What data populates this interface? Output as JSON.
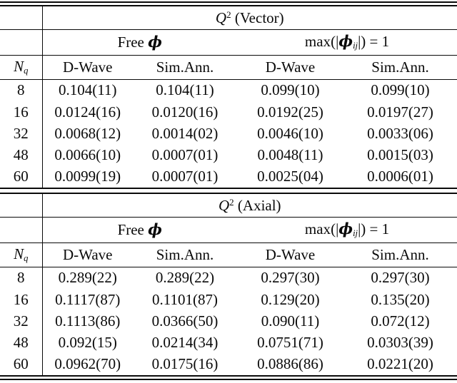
{
  "page": {
    "background": "#ffffff",
    "text_color": "#0a0a0a",
    "rule_color": "#0a0a0a"
  },
  "tables": [
    {
      "title": {
        "var": "Q",
        "sup": "2",
        "label": " (Vector)"
      },
      "groups": [
        {
          "pre": "Free ",
          "phi": "ϕ"
        },
        {
          "pre": "max(|",
          "phi": "ϕ",
          "sub": "ij",
          "post": "|) = 1"
        }
      ],
      "row_header": {
        "var": "N",
        "sub": "q"
      },
      "col_headers": [
        "D-Wave",
        "Sim.Ann.",
        "D-Wave",
        "Sim.Ann."
      ],
      "rows": [
        {
          "nq": "8",
          "values": [
            "0.104(11)",
            "0.104(11)",
            "0.099(10)",
            "0.099(10)"
          ]
        },
        {
          "nq": "16",
          "values": [
            "0.0124(16)",
            "0.0120(16)",
            "0.0192(25)",
            "0.0197(27)"
          ]
        },
        {
          "nq": "32",
          "values": [
            "0.0068(12)",
            "0.0014(02)",
            "0.0046(10)",
            "0.0033(06)"
          ]
        },
        {
          "nq": "48",
          "values": [
            "0.0066(10)",
            "0.0007(01)",
            "0.0048(11)",
            "0.0015(03)"
          ]
        },
        {
          "nq": "60",
          "values": [
            "0.0099(19)",
            "0.0007(01)",
            "0.0025(04)",
            "0.0006(01)"
          ]
        }
      ]
    },
    {
      "title": {
        "var": "Q",
        "sup": "2",
        "label": " (Axial)"
      },
      "groups": [
        {
          "pre": "Free ",
          "phi": "ϕ"
        },
        {
          "pre": "max(|",
          "phi": "ϕ",
          "sub": "ij",
          "post": "|) = 1"
        }
      ],
      "row_header": {
        "var": "N",
        "sub": "q"
      },
      "col_headers": [
        "D-Wave",
        "Sim.Ann.",
        "D-Wave",
        "Sim.Ann."
      ],
      "rows": [
        {
          "nq": "8",
          "values": [
            "0.289(22)",
            "0.289(22)",
            "0.297(30)",
            "0.297(30)"
          ]
        },
        {
          "nq": "16",
          "values": [
            "0.1117(87)",
            "0.1101(87)",
            "0.129(20)",
            "0.135(20)"
          ]
        },
        {
          "nq": "32",
          "values": [
            "0.1113(86)",
            "0.0366(50)",
            "0.090(11)",
            "0.072(12)"
          ]
        },
        {
          "nq": "48",
          "values": [
            "0.092(15)",
            "0.0214(34)",
            "0.0751(71)",
            "0.0303(39)"
          ]
        },
        {
          "nq": "60",
          "values": [
            "0.0962(70)",
            "0.0175(16)",
            "0.0886(86)",
            "0.0221(20)"
          ]
        }
      ]
    }
  ]
}
